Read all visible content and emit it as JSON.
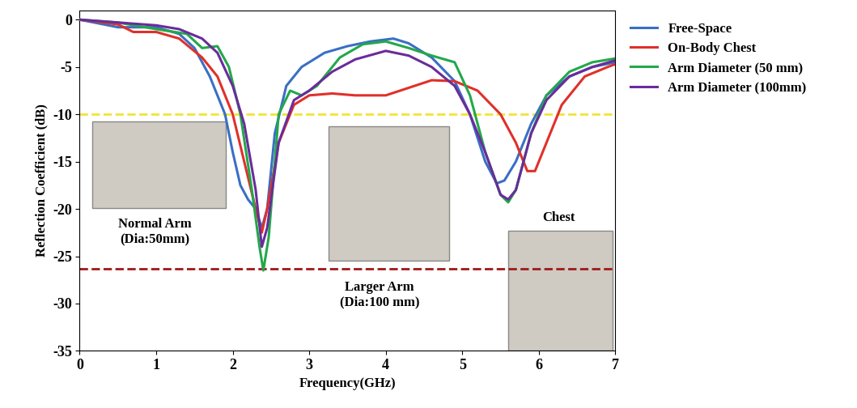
{
  "chart_data": {
    "type": "line",
    "x_label": "Frequency(GHz)",
    "y_label": "Reflection Coefficient (dB)",
    "xlim": [
      0,
      7
    ],
    "xticks": [
      0,
      1,
      2,
      3,
      4,
      5,
      6,
      7
    ],
    "ylim": [
      -35,
      1
    ],
    "yticks": [
      -35,
      -30,
      -25,
      -20,
      -15,
      -10,
      -5,
      0
    ],
    "grid": false,
    "legend": "right",
    "series": [
      {
        "name": "Free-Space",
        "color": "#3a6fc4",
        "x": [
          0,
          0.5,
          1,
          1.3,
          1.5,
          1.7,
          1.9,
          2.0,
          2.1,
          2.2,
          2.3,
          2.38,
          2.45,
          2.55,
          2.7,
          2.9,
          3.2,
          3.5,
          3.8,
          4.1,
          4.3,
          4.6,
          4.9,
          5.1,
          5.3,
          5.45,
          5.55,
          5.7,
          5.9,
          6.1,
          6.4,
          6.7,
          7
        ],
        "values": [
          0,
          -0.8,
          -0.8,
          -1.5,
          -3,
          -6,
          -10,
          -14,
          -17.5,
          -19,
          -20,
          -22,
          -20,
          -12,
          -7,
          -5,
          -3.5,
          -2.8,
          -2.3,
          -2.0,
          -2.5,
          -4,
          -6.5,
          -10,
          -15,
          -17.3,
          -17,
          -15,
          -11,
          -8,
          -6,
          -5,
          -4.5
        ]
      },
      {
        "name": "On-Body Chest",
        "color": "#e0302a",
        "x": [
          0,
          0.5,
          0.7,
          1,
          1.3,
          1.6,
          1.8,
          2.0,
          2.15,
          2.3,
          2.38,
          2.45,
          2.6,
          2.8,
          3.0,
          3.3,
          3.6,
          3.8,
          4.0,
          4.3,
          4.6,
          4.9,
          5.2,
          5.5,
          5.7,
          5.85,
          5.95,
          6.1,
          6.3,
          6.6,
          6.9,
          7
        ],
        "values": [
          0,
          -0.5,
          -1.3,
          -1.3,
          -2,
          -4,
          -6,
          -10,
          -15,
          -20,
          -22.5,
          -20,
          -13,
          -9,
          -8,
          -7.8,
          -8,
          -8,
          -8,
          -7.2,
          -6.4,
          -6.5,
          -7.5,
          -10,
          -13,
          -16,
          -16,
          -13,
          -9,
          -6,
          -5,
          -4.7
        ]
      },
      {
        "name": "Arm Diameter (50 mm)",
        "color": "#22a84a",
        "x": [
          0,
          0.5,
          1,
          1.4,
          1.6,
          1.8,
          1.95,
          2.1,
          2.25,
          2.35,
          2.4,
          2.47,
          2.6,
          2.75,
          2.9,
          3.1,
          3.4,
          3.7,
          4.0,
          4.3,
          4.6,
          4.9,
          5.1,
          5.3,
          5.5,
          5.6,
          5.7,
          5.9,
          6.1,
          6.4,
          6.7,
          7
        ],
        "values": [
          0,
          -0.3,
          -1,
          -1.5,
          -3,
          -2.8,
          -5,
          -10,
          -18,
          -24,
          -26.5,
          -23,
          -10,
          -7.5,
          -8,
          -7,
          -4,
          -2.6,
          -2.3,
          -3,
          -3.8,
          -4.5,
          -8,
          -14,
          -18.5,
          -19.3,
          -18,
          -12,
          -8,
          -5.5,
          -4.5,
          -4.1
        ]
      },
      {
        "name": "Arm Diameter (100mm)",
        "color": "#6a2c9a",
        "x": [
          0,
          0.5,
          1,
          1.3,
          1.6,
          1.8,
          2.0,
          2.15,
          2.3,
          2.38,
          2.45,
          2.6,
          2.8,
          3.0,
          3.3,
          3.6,
          4.0,
          4.3,
          4.6,
          4.9,
          5.1,
          5.3,
          5.5,
          5.6,
          5.7,
          5.9,
          6.1,
          6.4,
          6.7,
          7
        ],
        "values": [
          0,
          -0.3,
          -0.6,
          -1,
          -2,
          -3.5,
          -7,
          -11,
          -18,
          -24,
          -22,
          -13,
          -8.5,
          -7.5,
          -5.5,
          -4.2,
          -3.3,
          -3.8,
          -5,
          -7,
          -10,
          -14,
          -18.5,
          -19,
          -18,
          -12,
          -8.5,
          -6,
          -5,
          -4.3
        ]
      }
    ],
    "reference_lines": [
      {
        "value": -10,
        "color": "#f2e33a",
        "line_style": "dashed"
      },
      {
        "value": -26.3,
        "color": "#a01818",
        "line_style": "dashed"
      }
    ],
    "annotations": [
      "Normal Arm\n(Dia:50mm)",
      "Larger Arm\n(Dia:100 mm)",
      "Chest"
    ]
  }
}
